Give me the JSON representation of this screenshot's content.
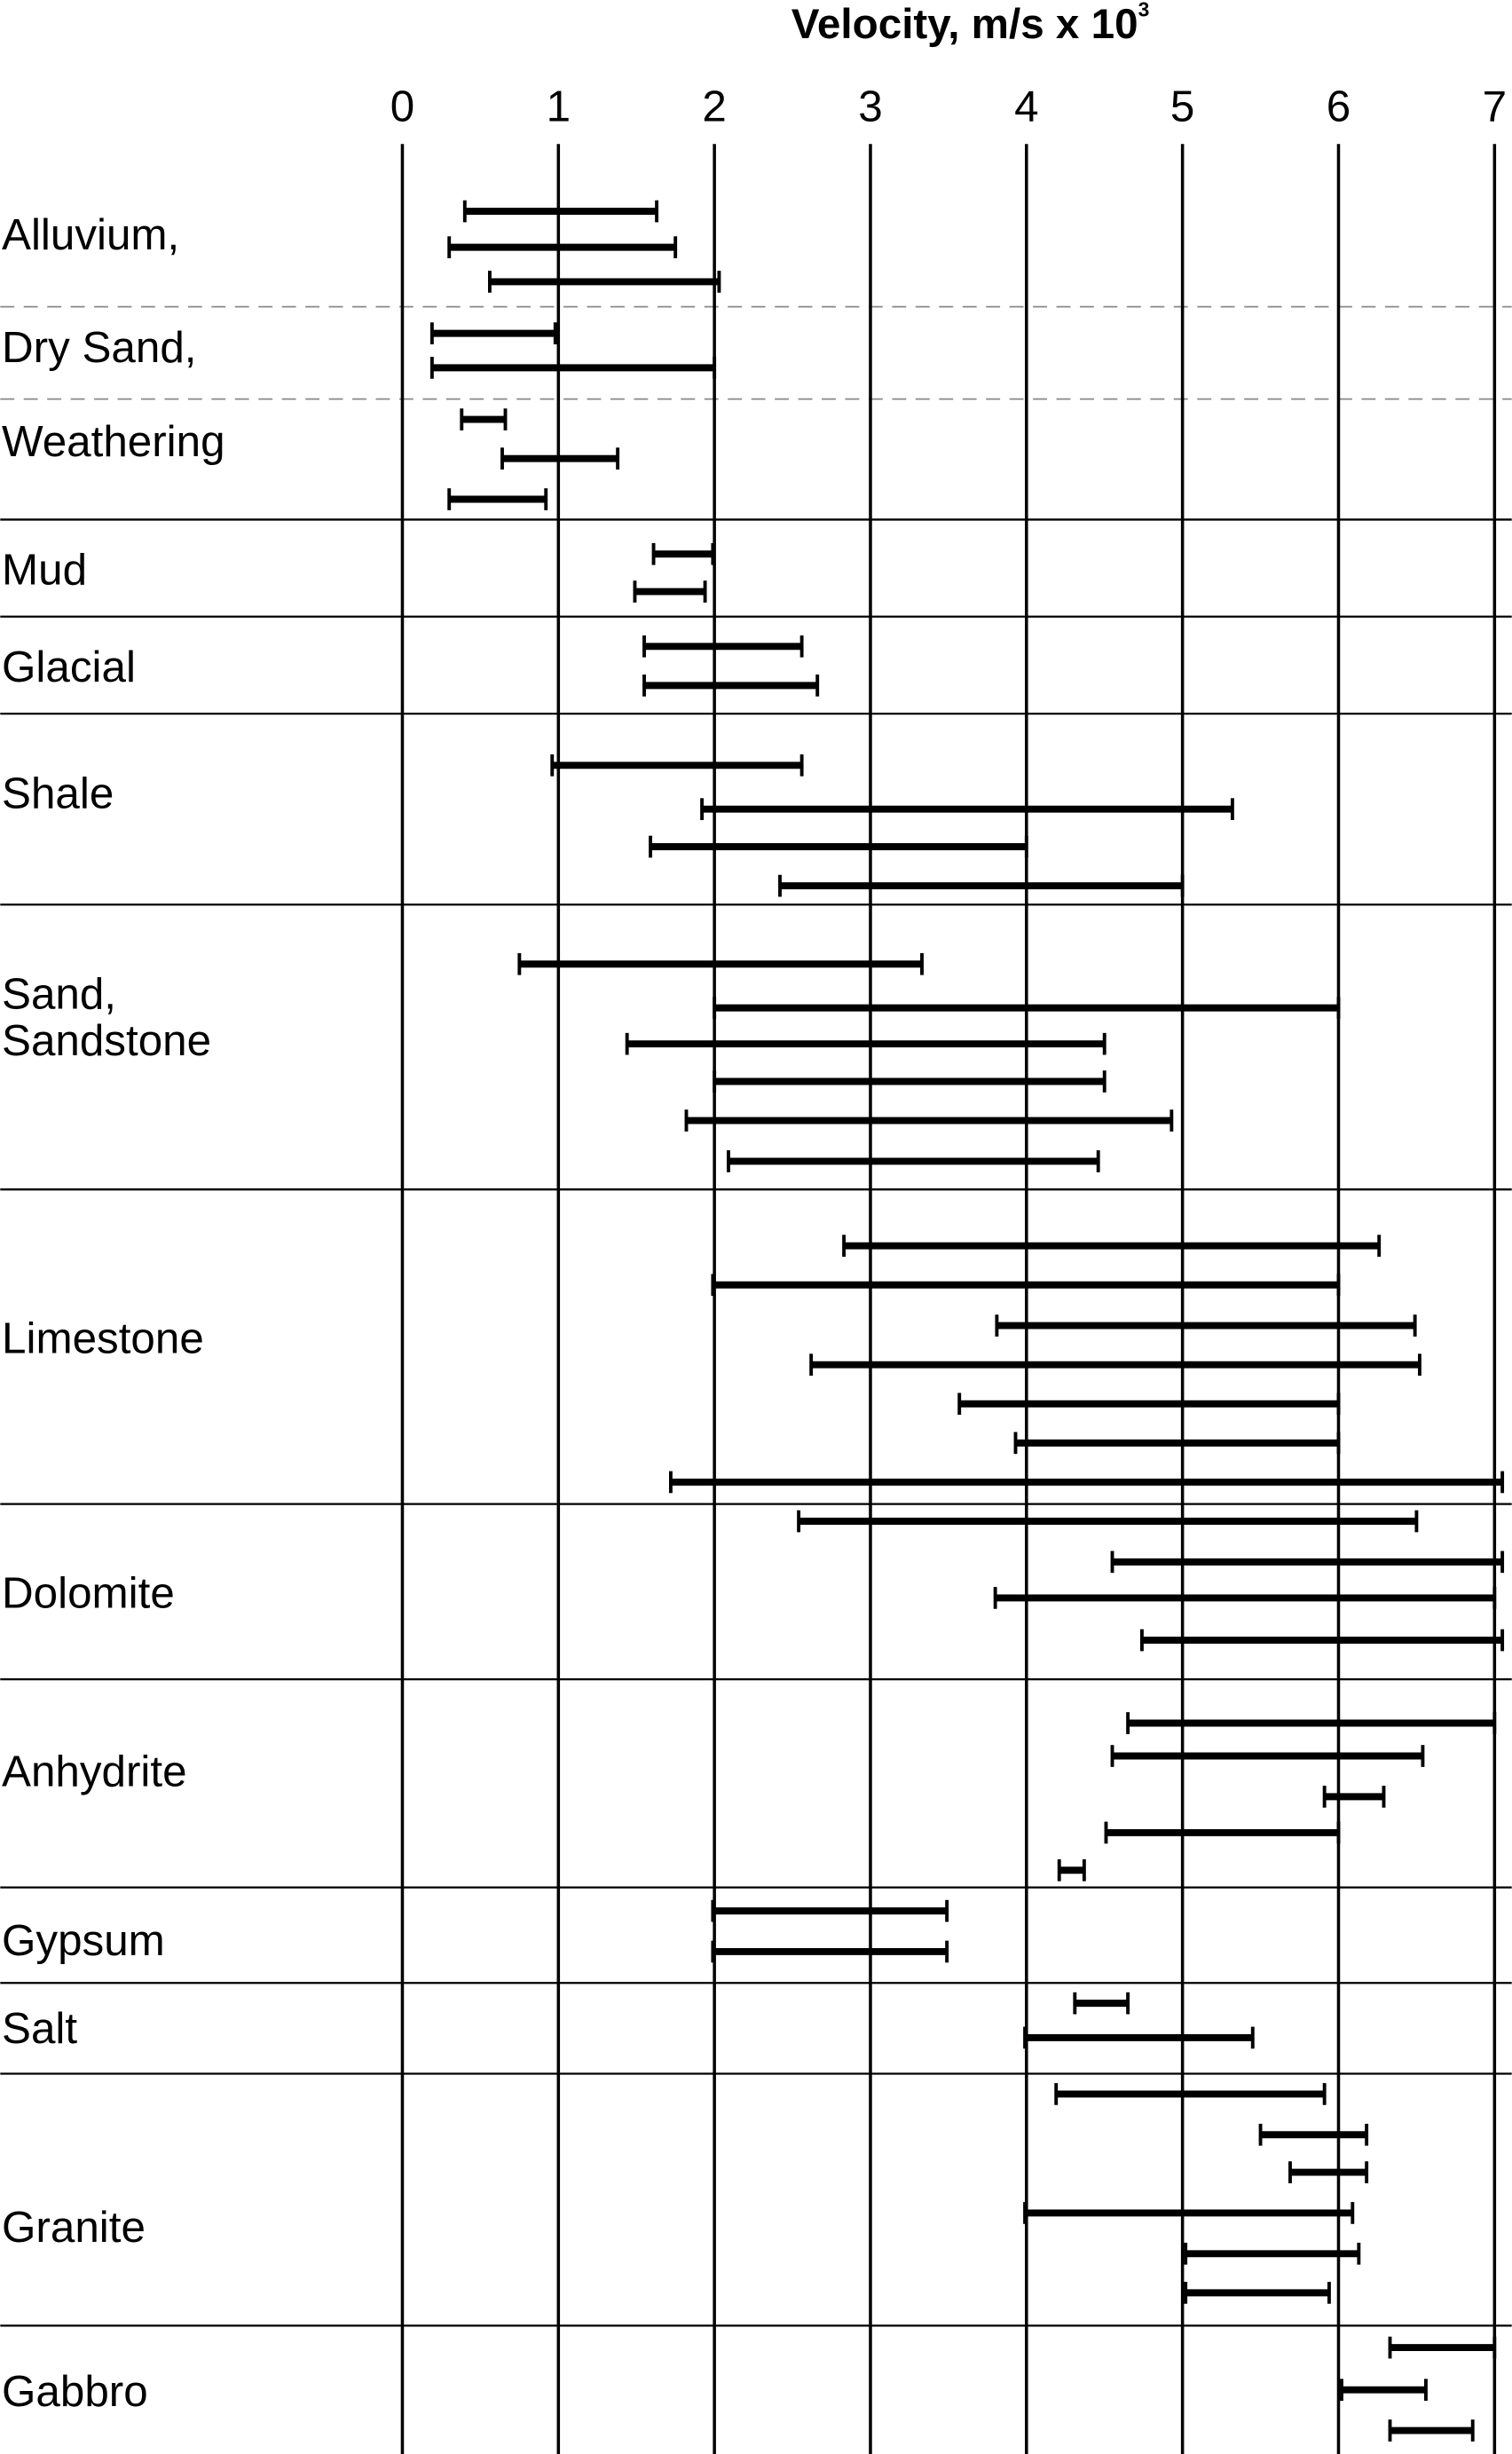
{
  "chart_data": {
    "type": "range",
    "title": "Velocity, m/s x 10",
    "title_superscript": "3",
    "xlim": [
      0,
      7
    ],
    "xticks": [
      0,
      1,
      2,
      3,
      4,
      5,
      6,
      7
    ],
    "grid": true,
    "color": "#000000",
    "groups": [
      {
        "label": [
          "Alluvium,"
        ],
        "ranges": [
          [
            0.4,
            1.63
          ],
          [
            0.3,
            1.75
          ],
          [
            0.56,
            2.03
          ]
        ]
      },
      {
        "label": [
          "Dry Sand,"
        ],
        "ranges": [
          [
            0.19,
            0.98
          ],
          [
            0.19,
            2.0
          ]
        ]
      },
      {
        "label": [
          "Weathering"
        ],
        "ranges": [
          [
            0.38,
            0.66
          ],
          [
            0.64,
            1.38
          ],
          [
            0.3,
            0.92
          ]
        ]
      },
      {
        "label": [
          "Mud"
        ],
        "ranges": [
          [
            1.61,
            1.99
          ],
          [
            1.49,
            1.94
          ]
        ]
      },
      {
        "label": [
          "Glacial"
        ],
        "ranges": [
          [
            1.55,
            2.56
          ],
          [
            1.55,
            2.66
          ]
        ]
      },
      {
        "label": [
          "Shale"
        ],
        "ranges": [
          [
            0.96,
            2.56
          ],
          [
            1.92,
            5.32
          ],
          [
            1.59,
            4.0
          ],
          [
            2.42,
            5.0
          ]
        ]
      },
      {
        "label": [
          "Sand,",
          "Sandstone"
        ],
        "ranges": [
          [
            0.75,
            3.33
          ],
          [
            2.0,
            6.0
          ],
          [
            1.44,
            4.5
          ],
          [
            2.0,
            4.5
          ],
          [
            1.82,
            4.93
          ],
          [
            2.09,
            4.46
          ]
        ]
      },
      {
        "label": [
          "Limestone"
        ],
        "ranges": [
          [
            2.83,
            6.26
          ],
          [
            1.99,
            6.0
          ],
          [
            3.81,
            6.49
          ],
          [
            2.62,
            6.52
          ],
          [
            3.57,
            6.0
          ],
          [
            3.93,
            6.0
          ],
          [
            1.72,
            7.05
          ]
        ]
      },
      {
        "label": [
          "Dolomite"
        ],
        "ranges": [
          [
            2.54,
            6.5
          ],
          [
            4.55,
            7.05
          ],
          [
            3.8,
            7.0
          ],
          [
            4.74,
            7.05
          ]
        ]
      },
      {
        "label": [
          "Anhydrite"
        ],
        "ranges": [
          [
            4.65,
            7.0
          ],
          [
            4.55,
            6.54
          ],
          [
            5.91,
            6.29
          ],
          [
            4.51,
            6.0
          ],
          [
            4.21,
            4.37
          ]
        ]
      },
      {
        "label": [
          "Gypsum"
        ],
        "ranges": [
          [
            1.99,
            3.49
          ],
          [
            1.99,
            3.49
          ]
        ]
      },
      {
        "label": [
          "Salt"
        ],
        "ranges": [
          [
            4.31,
            4.65
          ],
          [
            3.99,
            5.45
          ]
        ]
      },
      {
        "label": [
          "Granite"
        ],
        "ranges": [
          [
            4.19,
            5.91
          ],
          [
            5.5,
            6.18
          ],
          [
            5.69,
            6.18
          ],
          [
            3.99,
            6.09
          ],
          [
            5.02,
            6.13
          ],
          [
            5.02,
            5.94
          ]
        ]
      },
      {
        "label": [
          "Gabbro"
        ],
        "ranges": [
          [
            6.33,
            7.0
          ],
          [
            6.02,
            6.56
          ],
          [
            6.33,
            6.86
          ]
        ]
      }
    ]
  }
}
